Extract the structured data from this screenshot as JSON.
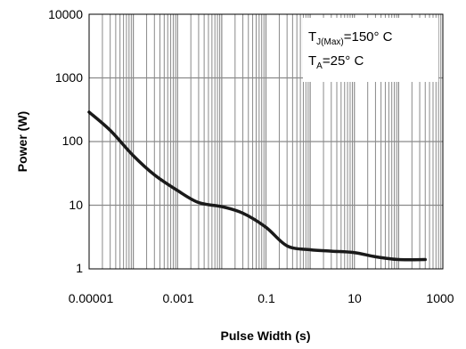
{
  "chart_data": {
    "type": "line",
    "xscale": "log",
    "yscale": "log",
    "xlim": [
      1e-05,
      1000
    ],
    "ylim": [
      1,
      10000
    ],
    "xlabel": "Pulse Width (s)",
    "ylabel": "Power (W)",
    "x_tick_labels": [
      "0.00001",
      "0.001",
      "0.1",
      "10",
      "1000"
    ],
    "y_tick_labels": [
      "1",
      "10",
      "100",
      "1000",
      "10000"
    ],
    "grid": true,
    "annotation": {
      "line1": {
        "prefix": "T",
        "sub": "J(Max)",
        "suffix": "=150° C"
      },
      "line2": {
        "prefix": "T",
        "sub": "A",
        "suffix": "=25° C"
      }
    },
    "series": [
      {
        "x": [
          1e-05,
          3e-05,
          0.0001,
          0.0003,
          0.001,
          0.003,
          0.01,
          0.03,
          0.1,
          0.3,
          1,
          3,
          10,
          30,
          100,
          400
        ],
        "y": [
          290,
          150,
          60,
          30,
          17,
          11,
          9.5,
          7.5,
          4.5,
          2.3,
          2.0,
          1.9,
          1.8,
          1.55,
          1.4,
          1.4
        ]
      }
    ],
    "colors": {
      "line": "#1a1a1a",
      "grid": "#8a8a8a",
      "frame": "#000000"
    }
  }
}
